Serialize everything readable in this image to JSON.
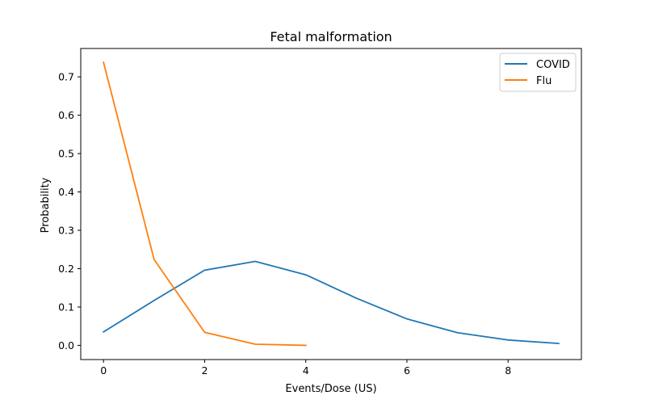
{
  "chart_data": {
    "type": "line",
    "title": "Fetal malformation",
    "xlabel": "Events/Dose (US)",
    "ylabel": "Probability",
    "xlim": [
      -0.45,
      9.45
    ],
    "ylim": [
      -0.037,
      0.774
    ],
    "xticks": [
      0,
      2,
      4,
      6,
      8
    ],
    "yticks": [
      0.0,
      0.1,
      0.2,
      0.3,
      0.4,
      0.5,
      0.6,
      0.7
    ],
    "grid": false,
    "legend_position": "top-right",
    "series": [
      {
        "name": "COVID",
        "color": "#1f77b4",
        "x": [
          0,
          1,
          2,
          3,
          4,
          5,
          6,
          7,
          8,
          9
        ],
        "y": [
          0.035,
          0.117,
          0.196,
          0.219,
          0.184,
          0.123,
          0.069,
          0.033,
          0.014,
          0.005
        ]
      },
      {
        "name": "Flu",
        "color": "#ff7f0e",
        "x": [
          0,
          1,
          2,
          3,
          4
        ],
        "y": [
          0.738,
          0.224,
          0.034,
          0.003,
          0.0
        ]
      }
    ]
  }
}
